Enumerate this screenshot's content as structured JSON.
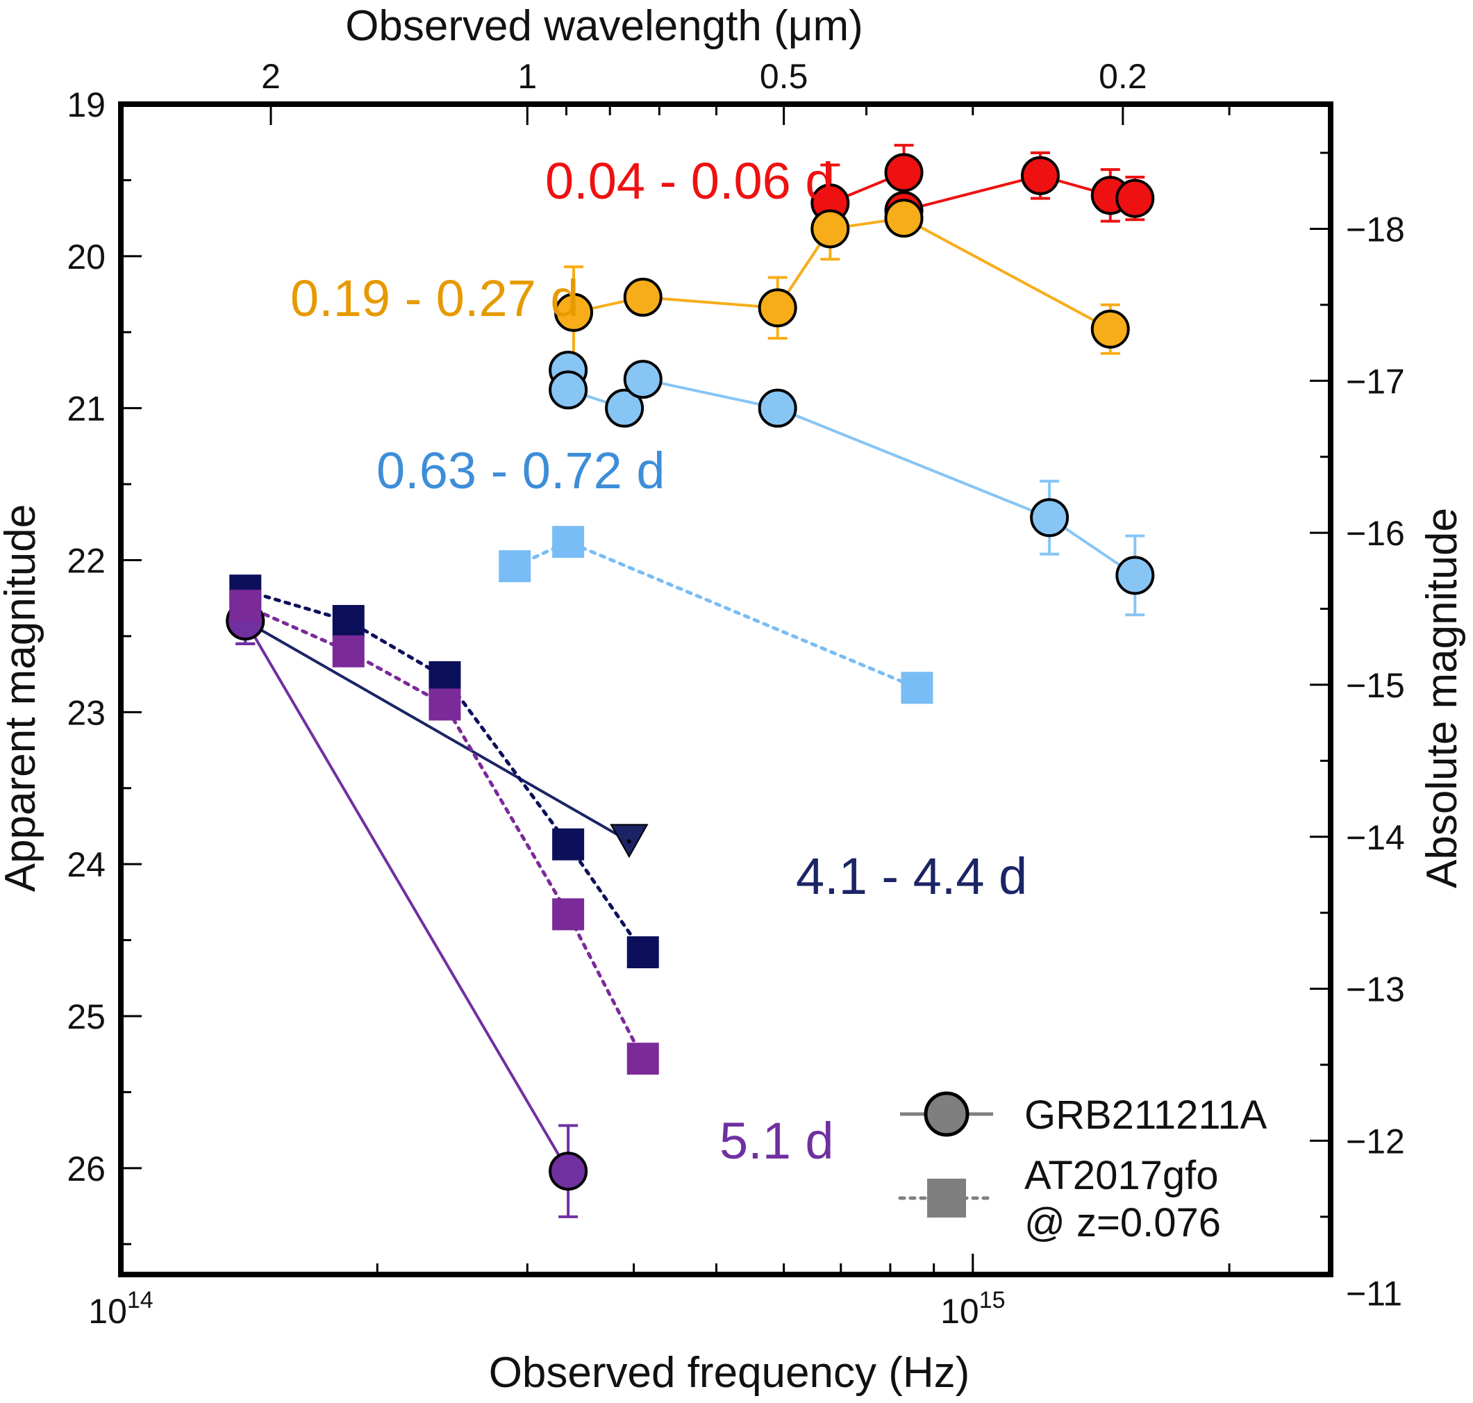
{
  "chart_data": {
    "type": "scatter",
    "title": "",
    "xlabel": "Observed frequency (Hz)",
    "ylabel": "Apparent magnitude",
    "x2label": "Observed wavelength (μm)",
    "y2label": "Absolute magnitude",
    "xscale": "log",
    "xlim": [
      100000000000000.0,
      2630000000000000.0
    ],
    "ylim": [
      26.7,
      19
    ],
    "x_ticks": [
      {
        "label": "10",
        "exp": "14"
      },
      {
        "label": "10",
        "exp": "15"
      }
    ],
    "top_tick_labels": [
      "2",
      "1",
      "0.5",
      "0.2"
    ],
    "y_tick_labels": [
      "19",
      "20",
      "21",
      "22",
      "23",
      "24",
      "25",
      "26"
    ],
    "y2_tick_labels": [
      "−18",
      "−17",
      "−16",
      "−15",
      "−14",
      "−13",
      "−12",
      "−11"
    ],
    "grid": false,
    "legend_position": "bottom-right",
    "legend": [
      {
        "label": "GRB211211A",
        "marker": "circle",
        "line": "solid",
        "color": "#7f7f7f"
      },
      {
        "label": "AT2017gfo",
        "label2": "@ z=0.076",
        "marker": "square",
        "line": "dotted",
        "color": "#7f7f7f"
      }
    ],
    "annotations": [
      {
        "text": "0.04 - 0.06 d",
        "color": "#ee1111"
      },
      {
        "text": "0.19 - 0.27 d",
        "color": "#e69a00"
      },
      {
        "text": "0.63 - 0.72 d",
        "color": "#3d8ed8"
      },
      {
        "text": "4.1 - 4.4 d",
        "color": "#1b2466"
      },
      {
        "text": "5.1 d",
        "color": "#7030a0"
      }
    ],
    "series": [
      {
        "name": "0.04 - 0.06 d",
        "source": "GRB211211A",
        "marker": "circle",
        "line": "solid",
        "color": "#ee1111",
        "points": [
          {
            "x": 680000000000000.0,
            "y": 19.65,
            "err": 0.25
          },
          {
            "x": 830000000000000.0,
            "y": 19.45,
            "err": 0.18
          },
          {
            "x": 830000000000000.0,
            "y": 19.7,
            "err": 0
          },
          {
            "x": 1200000000000000.0,
            "y": 19.47,
            "err": 0.15
          },
          {
            "x": 1450000000000000.0,
            "y": 19.6,
            "err": 0.17
          },
          {
            "x": 1550000000000000.0,
            "y": 19.62,
            "err": 0.14
          }
        ]
      },
      {
        "name": "0.19 - 0.27 d",
        "source": "GRB211211A",
        "marker": "circle",
        "line": "solid",
        "color": "#f7ad19",
        "points": [
          {
            "x": 340000000000000.0,
            "y": 20.37,
            "err": 0.3
          },
          {
            "x": 410000000000000.0,
            "y": 20.27,
            "err": 0
          },
          {
            "x": 590000000000000.0,
            "y": 20.34,
            "err": 0.2
          },
          {
            "x": 680000000000000.0,
            "y": 19.82,
            "err": 0.2
          },
          {
            "x": 830000000000000.0,
            "y": 19.75,
            "err": 0.1
          },
          {
            "x": 1450000000000000.0,
            "y": 20.48,
            "err": 0.16
          }
        ]
      },
      {
        "name": "0.63 - 0.72 d",
        "source": "GRB211211A",
        "marker": "circle",
        "line": "solid",
        "color": "#87c5f5",
        "points": [
          {
            "x": 335000000000000.0,
            "y": 20.75,
            "err": 0
          },
          {
            "x": 335000000000000.0,
            "y": 20.88,
            "err": 0
          },
          {
            "x": 390000000000000.0,
            "y": 21.0,
            "err": 0
          },
          {
            "x": 410000000000000.0,
            "y": 20.81,
            "err": 0
          },
          {
            "x": 590000000000000.0,
            "y": 21.0,
            "err": 0
          },
          {
            "x": 1230000000000000.0,
            "y": 21.72,
            "err": 0.24
          },
          {
            "x": 1550000000000000.0,
            "y": 22.1,
            "err": 0.26
          }
        ]
      },
      {
        "name": "0.63 - 0.72 d",
        "source": "AT2017gfo @ z=0.076",
        "marker": "square",
        "line": "dotted",
        "color": "#78bdf5",
        "points": [
          {
            "x": 290000000000000.0,
            "y": 22.04
          },
          {
            "x": 335000000000000.0,
            "y": 21.88
          },
          {
            "x": 860000000000000.0,
            "y": 22.84
          }
        ]
      },
      {
        "name": "4.1 - 4.4 d",
        "source": "GRB211211A",
        "marker": "circle+upper-limit",
        "line": "solid",
        "color": "#1b2466",
        "points": [
          {
            "x": 140000000000000.0,
            "y": 22.4,
            "err": 0.15
          },
          {
            "x": 395000000000000.0,
            "y": 23.85,
            "upper_limit": true
          }
        ]
      },
      {
        "name": "4.1 - 4.4 d",
        "source": "AT2017gfo @ z=0.076",
        "marker": "square",
        "line": "dotted",
        "color": "#0c0f5a",
        "points": [
          {
            "x": 140000000000000.0,
            "y": 22.2
          },
          {
            "x": 185000000000000.0,
            "y": 22.4
          },
          {
            "x": 240000000000000.0,
            "y": 22.77
          },
          {
            "x": 335000000000000.0,
            "y": 23.87
          },
          {
            "x": 410000000000000.0,
            "y": 24.58
          }
        ]
      },
      {
        "name": "5.1 d",
        "source": "GRB211211A",
        "marker": "circle",
        "line": "solid",
        "color": "#7030a0",
        "points": [
          {
            "x": 140000000000000.0,
            "y": 22.4,
            "err": 0.15
          },
          {
            "x": 335000000000000.0,
            "y": 26.02,
            "err": 0.3
          }
        ]
      },
      {
        "name": "5.1 d",
        "source": "AT2017gfo @ z=0.076",
        "marker": "square",
        "line": "dotted",
        "color": "#7b2a99",
        "points": [
          {
            "x": 140000000000000.0,
            "y": 22.3
          },
          {
            "x": 185000000000000.0,
            "y": 22.6
          },
          {
            "x": 240000000000000.0,
            "y": 22.95
          },
          {
            "x": 335000000000000.0,
            "y": 24.33
          },
          {
            "x": 410000000000000.0,
            "y": 25.28
          }
        ]
      }
    ]
  }
}
